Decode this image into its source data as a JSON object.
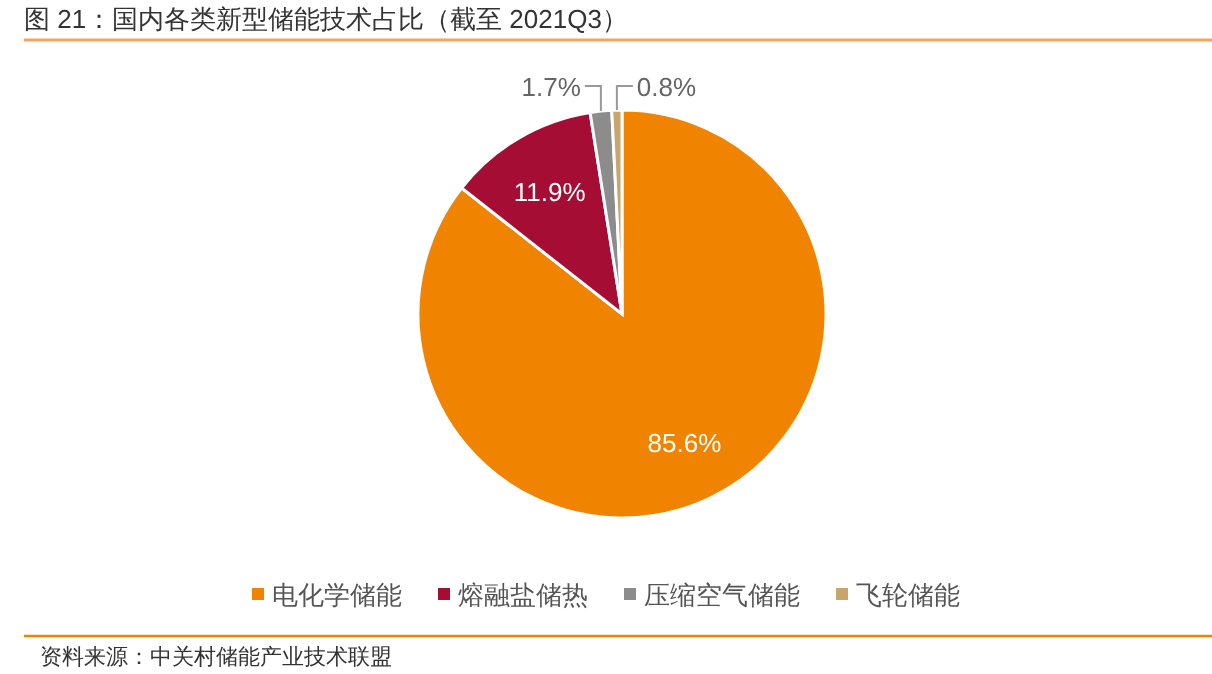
{
  "chart_data": {
    "type": "pie",
    "title": "图 21：国内各类新型储能技术占比（截至 2021Q3）",
    "categories": [
      "电化学储能",
      "熔融盐储热",
      "压缩空气储能",
      "飞轮储能"
    ],
    "values": [
      85.6,
      11.9,
      1.7,
      0.8
    ],
    "colors": [
      "#f08300",
      "#a50d34",
      "#8c8c8c",
      "#c8a56a"
    ],
    "value_labels": [
      "85.6%",
      "11.9%",
      "1.7%",
      "0.8%"
    ],
    "legend": "bottom",
    "annotations": [
      "资料来源：中关村储能产业技术联盟"
    ]
  }
}
